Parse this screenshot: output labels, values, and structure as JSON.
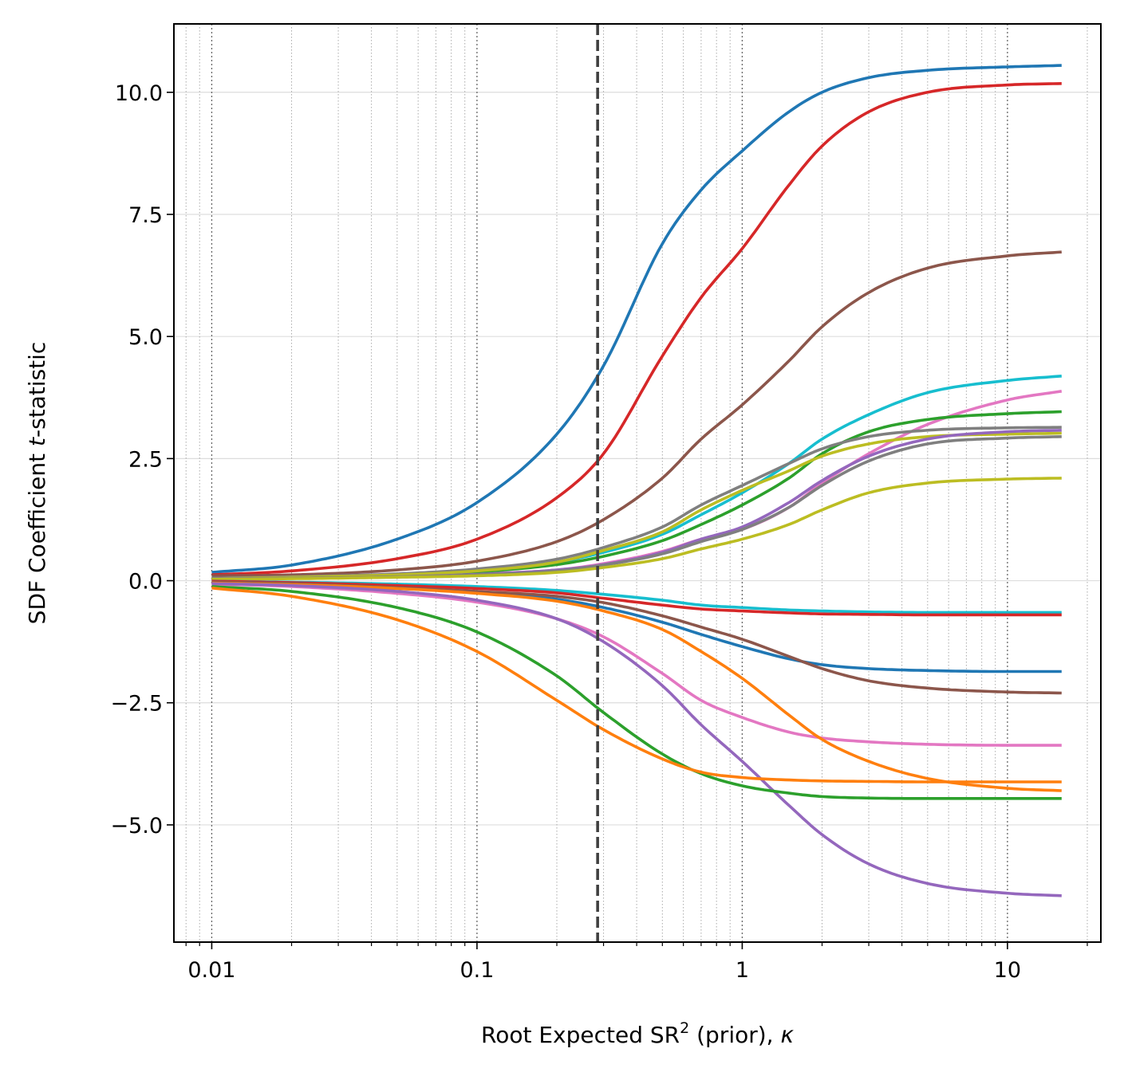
{
  "chart_data": {
    "type": "line",
    "xscale": "log",
    "xlabel": "Root Expected SR² (prior), κ",
    "ylabel": "SDF Coefficient t-statistic",
    "xlim": [
      0.0072,
      22.5
    ],
    "ylim": [
      -7.4,
      11.4
    ],
    "xticks": [
      0.01,
      0.1,
      1,
      10
    ],
    "xtick_labels": [
      "0.01",
      "0.1",
      "1",
      "10"
    ],
    "yticks": [
      -5.0,
      -2.5,
      0.0,
      2.5,
      5.0,
      7.5,
      10.0
    ],
    "ytick_labels": [
      "−5.0",
      "−2.5",
      "0.0",
      "2.5",
      "5.0",
      "7.5",
      "10.0"
    ],
    "grid": {
      "x_major": true,
      "x_minor": true,
      "y_major": true
    },
    "vline": {
      "x": 0.285,
      "style": "dashed"
    },
    "x": [
      0.01,
      0.02,
      0.05,
      0.1,
      0.2,
      0.3,
      0.5,
      0.7,
      1,
      1.5,
      2,
      3,
      5,
      10,
      16
    ],
    "series": [
      {
        "color": "#1f77b4",
        "values": [
          0.17,
          0.32,
          0.85,
          1.6,
          3.0,
          4.4,
          6.9,
          8.0,
          8.8,
          9.6,
          10.0,
          10.3,
          10.45,
          10.52,
          10.55
        ]
      },
      {
        "color": "#d62728",
        "values": [
          0.12,
          0.2,
          0.45,
          0.85,
          1.7,
          2.6,
          4.6,
          5.8,
          6.8,
          8.1,
          8.9,
          9.6,
          10.0,
          10.15,
          10.18
        ]
      },
      {
        "color": "#8c564b",
        "values": [
          0.1,
          0.12,
          0.22,
          0.4,
          0.8,
          1.25,
          2.1,
          2.9,
          3.6,
          4.5,
          5.2,
          5.9,
          6.4,
          6.65,
          6.73
        ]
      },
      {
        "color": "#17becf",
        "values": [
          0.05,
          0.07,
          0.12,
          0.2,
          0.38,
          0.58,
          0.95,
          1.35,
          1.8,
          2.4,
          2.9,
          3.4,
          3.85,
          4.1,
          4.19
        ]
      },
      {
        "color": "#e377c2",
        "values": [
          0.04,
          0.05,
          0.09,
          0.14,
          0.22,
          0.35,
          0.6,
          0.85,
          1.05,
          1.5,
          2.0,
          2.6,
          3.2,
          3.7,
          3.88
        ]
      },
      {
        "color": "#2ca02c",
        "values": [
          0.04,
          0.06,
          0.11,
          0.18,
          0.33,
          0.5,
          0.82,
          1.15,
          1.55,
          2.1,
          2.6,
          3.05,
          3.3,
          3.42,
          3.46
        ]
      },
      {
        "color": "#7f7f7f",
        "values": [
          0.05,
          0.08,
          0.14,
          0.24,
          0.44,
          0.68,
          1.1,
          1.55,
          1.95,
          2.4,
          2.7,
          2.95,
          3.08,
          3.13,
          3.14
        ]
      },
      {
        "color": "#bcbd22",
        "values": [
          0.04,
          0.07,
          0.12,
          0.2,
          0.38,
          0.62,
          1.0,
          1.45,
          1.85,
          2.25,
          2.55,
          2.8,
          2.95,
          3.0,
          3.02
        ]
      },
      {
        "color": "#9467bd",
        "values": [
          0.04,
          0.05,
          0.08,
          0.13,
          0.22,
          0.33,
          0.58,
          0.85,
          1.1,
          1.6,
          2.05,
          2.55,
          2.9,
          3.05,
          3.08
        ]
      },
      {
        "color": "#7f7f7f",
        "values": [
          0.04,
          0.05,
          0.08,
          0.12,
          0.2,
          0.32,
          0.55,
          0.8,
          1.05,
          1.5,
          1.95,
          2.45,
          2.8,
          2.92,
          2.95
        ]
      },
      {
        "color": "#bcbd22",
        "values": [
          0.03,
          0.04,
          0.07,
          0.1,
          0.17,
          0.27,
          0.45,
          0.65,
          0.85,
          1.15,
          1.45,
          1.8,
          2.0,
          2.08,
          2.1
        ]
      },
      {
        "color": "#17becf",
        "values": [
          -0.01,
          -0.03,
          -0.07,
          -0.12,
          -0.2,
          -0.28,
          -0.4,
          -0.5,
          -0.55,
          -0.6,
          -0.62,
          -0.64,
          -0.65,
          -0.65,
          -0.65
        ]
      },
      {
        "color": "#d62728",
        "values": [
          -0.01,
          -0.04,
          -0.1,
          -0.16,
          -0.25,
          -0.36,
          -0.5,
          -0.58,
          -0.62,
          -0.66,
          -0.68,
          -0.69,
          -0.7,
          -0.7,
          -0.7
        ]
      },
      {
        "color": "#1f77b4",
        "values": [
          -0.03,
          -0.06,
          -0.16,
          -0.24,
          -0.38,
          -0.55,
          -0.85,
          -1.1,
          -1.35,
          -1.6,
          -1.72,
          -1.8,
          -1.84,
          -1.86,
          -1.86
        ]
      },
      {
        "color": "#8c564b",
        "values": [
          -0.03,
          -0.06,
          -0.14,
          -0.22,
          -0.32,
          -0.45,
          -0.72,
          -0.95,
          -1.2,
          -1.55,
          -1.8,
          -2.05,
          -2.2,
          -2.28,
          -2.3
        ]
      },
      {
        "color": "#e377c2",
        "values": [
          -0.07,
          -0.12,
          -0.26,
          -0.44,
          -0.78,
          -1.15,
          -1.9,
          -2.45,
          -2.8,
          -3.1,
          -3.22,
          -3.3,
          -3.35,
          -3.37,
          -3.37
        ]
      },
      {
        "color": "#ff7f0e",
        "values": [
          -0.05,
          -0.08,
          -0.16,
          -0.26,
          -0.42,
          -0.62,
          -1.0,
          -1.45,
          -2.0,
          -2.75,
          -3.25,
          -3.7,
          -4.05,
          -4.25,
          -4.3
        ]
      },
      {
        "color": "#9467bd",
        "values": [
          -0.06,
          -0.1,
          -0.22,
          -0.4,
          -0.78,
          -1.25,
          -2.15,
          -2.95,
          -3.7,
          -4.6,
          -5.2,
          -5.8,
          -6.2,
          -6.4,
          -6.45
        ]
      },
      {
        "color": "#2ca02c",
        "values": [
          -0.12,
          -0.22,
          -0.55,
          -1.05,
          -1.95,
          -2.7,
          -3.55,
          -3.95,
          -4.2,
          -4.35,
          -4.42,
          -4.45,
          -4.46,
          -4.46,
          -4.46
        ]
      },
      {
        "color": "#ff7f0e",
        "values": [
          -0.15,
          -0.32,
          -0.8,
          -1.45,
          -2.45,
          -3.05,
          -3.65,
          -3.92,
          -4.03,
          -4.08,
          -4.1,
          -4.11,
          -4.12,
          -4.12,
          -4.12
        ]
      }
    ]
  }
}
